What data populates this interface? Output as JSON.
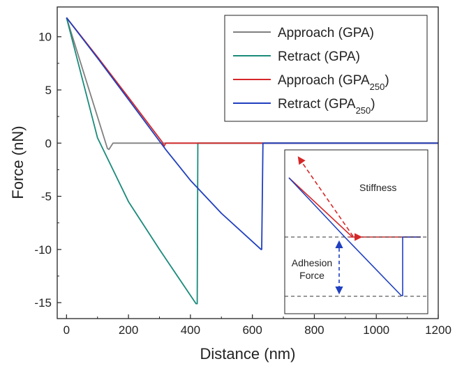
{
  "chart_data": {
    "type": "line",
    "title": "",
    "xlabel": "Distance (nm)",
    "ylabel": "Force (nN)",
    "xlim": [
      -30,
      1200
    ],
    "ylim": [
      -16.5,
      12.8
    ],
    "xticks": [
      0,
      200,
      400,
      600,
      800,
      1000,
      1200
    ],
    "yticks": [
      10,
      5,
      0,
      -5,
      -10,
      -15
    ],
    "grid": false,
    "legend_position": "top-right",
    "series": [
      {
        "name": "Approach (GPA)",
        "color": "#7f7f7f",
        "x": [
          0,
          132,
          137,
          150,
          300,
          1200
        ],
        "y": [
          11.8,
          -0.5,
          -0.6,
          0,
          0,
          0
        ]
      },
      {
        "name": "Retract (GPA)",
        "color": "#1a8a7a",
        "x": [
          0,
          100,
          200,
          300,
          418,
          422,
          424,
          1200
        ],
        "y": [
          11.8,
          0.5,
          -5.5,
          -10.0,
          -15.1,
          -15.1,
          0,
          0
        ]
      },
      {
        "name": "Approach (GPA250)",
        "color": "#d62728",
        "x": [
          0,
          100,
          200,
          309,
          315,
          320,
          1200
        ],
        "y": [
          11.8,
          8.1,
          4.3,
          0.1,
          -0.3,
          0,
          0
        ]
      },
      {
        "name": "Retract (GPA250)",
        "color": "#1f3fbf",
        "x": [
          0,
          100,
          200,
          320,
          400,
          500,
          628,
          630,
          634,
          1200
        ],
        "y": [
          11.8,
          8.0,
          4.1,
          -0.6,
          -3.5,
          -6.6,
          -10.0,
          -10.0,
          0,
          0
        ]
      }
    ],
    "legend": [
      {
        "base": "Approach (GPA",
        "sub": "",
        "tail": ")",
        "color": "#7f7f7f"
      },
      {
        "base": "Retract (GPA",
        "sub": "",
        "tail": ")",
        "color": "#1a8a7a"
      },
      {
        "base": "Approach (GPA",
        "sub": "250",
        "tail": ")",
        "color": "#d62728"
      },
      {
        "base": "Retract (GPA",
        "sub": "250",
        "tail": ")",
        "color": "#1f3fbf"
      }
    ],
    "inset": {
      "stiffness_label": "Stiffness",
      "adhesion_label_line1": "Adhesion",
      "adhesion_label_line2": "Force"
    }
  }
}
